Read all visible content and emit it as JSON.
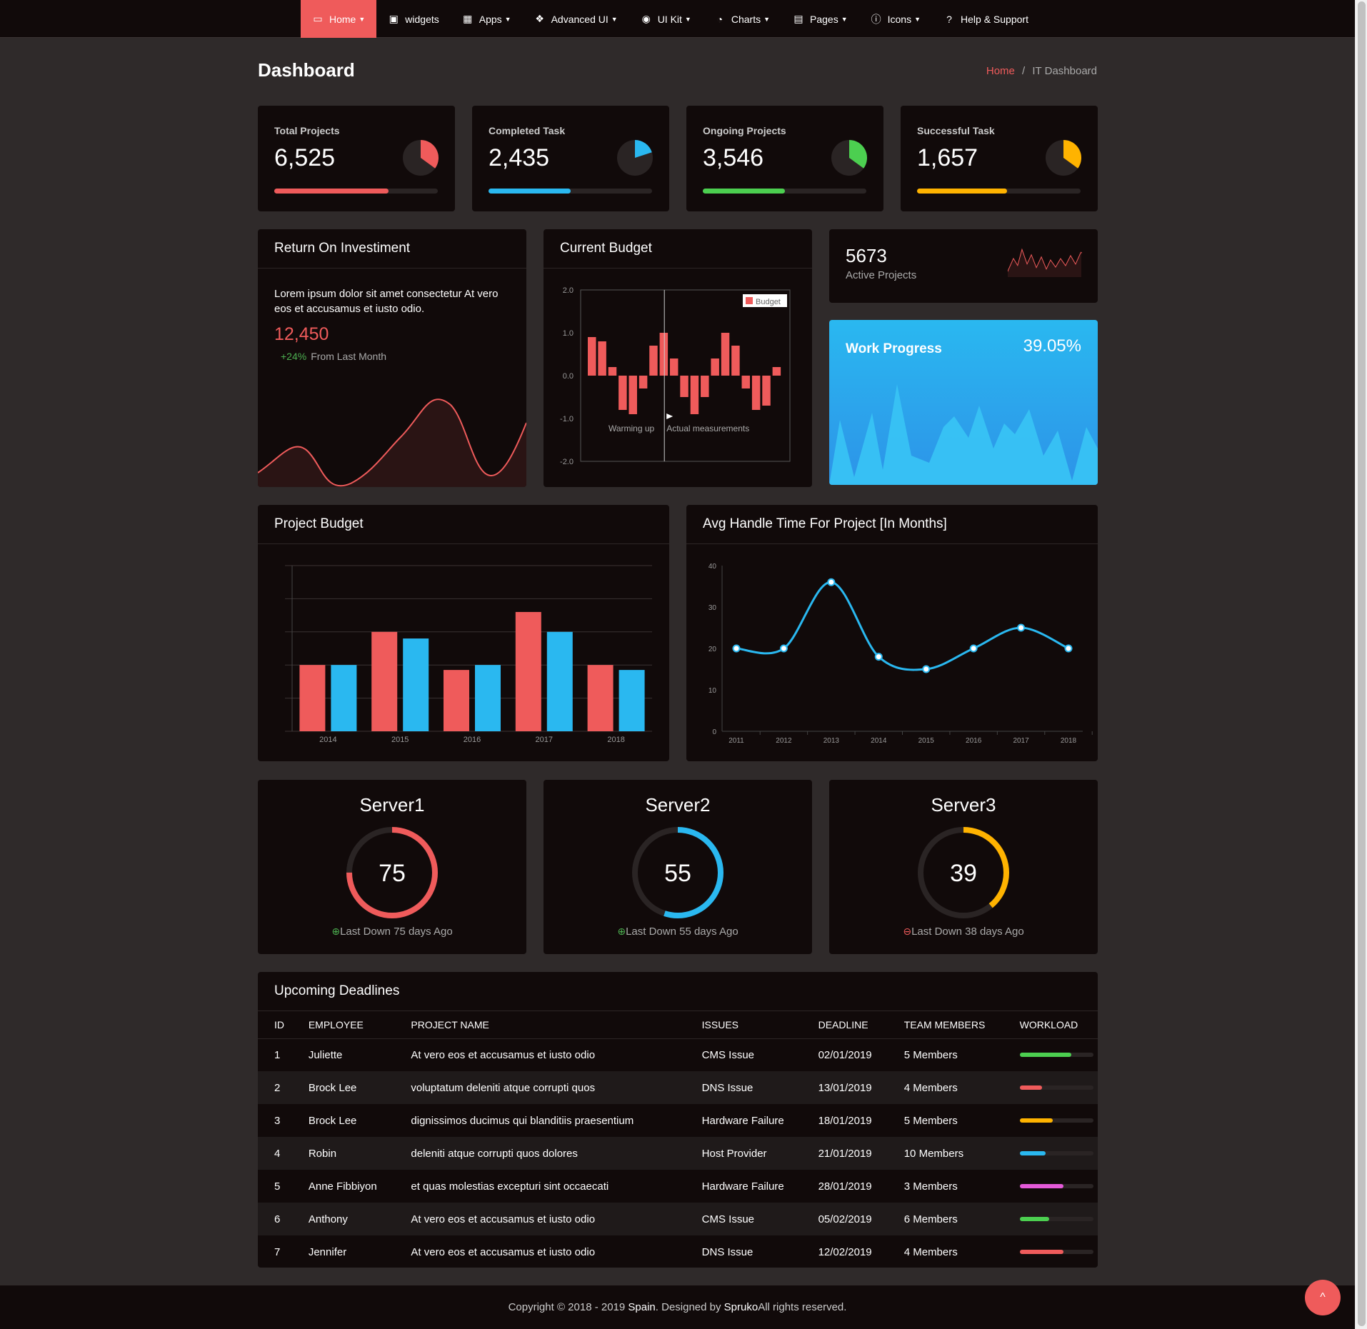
{
  "nav": {
    "items": [
      {
        "label": "Home",
        "icon": "monitor-icon",
        "chevron": true
      },
      {
        "label": "widgets",
        "icon": "window-icon",
        "chevron": false
      },
      {
        "label": "Apps",
        "icon": "grid-icon",
        "chevron": true
      },
      {
        "label": "Advanced UI",
        "icon": "cubes-icon",
        "chevron": true
      },
      {
        "label": "UI Kit",
        "icon": "compass-icon",
        "chevron": true
      },
      {
        "label": "Charts",
        "icon": "pie-chart-icon",
        "chevron": true
      },
      {
        "label": "Pages",
        "icon": "list-alt-icon",
        "chevron": true
      },
      {
        "label": "Icons",
        "icon": "info-circle-icon",
        "chevron": true
      },
      {
        "label": "Help & Support",
        "icon": "question-circle-icon",
        "chevron": false
      }
    ],
    "active_color": "#ef5b5b"
  },
  "page": {
    "title": "Dashboard"
  },
  "breadcrumb": {
    "home": "Home",
    "separator": "/",
    "current": "IT Dashboard"
  },
  "stats": [
    {
      "label": "Total Projects",
      "value": "6,525",
      "progress": 0.7,
      "pie_fraction": 0.35,
      "color": "#ef5b5b"
    },
    {
      "label": "Completed Task",
      "value": "2,435",
      "progress": 0.5,
      "pie_fraction": 0.2,
      "color": "#2ab8f0"
    },
    {
      "label": "Ongoing Projects",
      "value": "3,546",
      "progress": 0.5,
      "pie_fraction": 0.35,
      "color": "#4ccf50"
    },
    {
      "label": "Successful Task",
      "value": "1,657",
      "progress": 0.55,
      "pie_fraction": 0.35,
      "color": "#ffb300"
    }
  ],
  "roi": {
    "title": "Return On Investiment",
    "text": "Lorem ipsum dolor sit amet consectetur At vero eos et accusamus et iusto odio.",
    "value": "12,450",
    "change": "+24%",
    "change_label": "From Last Month"
  },
  "budget_card": {
    "title": "Current Budget",
    "chart_data": {
      "type": "bar",
      "legend": "Budget",
      "yticks": [
        "2.0",
        "1.0",
        "0.0",
        "-1.0",
        "-2.0"
      ],
      "ylim": [
        -2,
        2
      ],
      "annotations": [
        "Warming up",
        "Actual measurements"
      ],
      "values": [
        0.9,
        0.8,
        0.2,
        -0.8,
        -0.9,
        -0.3,
        0.7,
        1.0,
        0.4,
        -0.5,
        -0.9,
        -0.5,
        0.4,
        1.0,
        0.7,
        -0.3,
        -0.8,
        -0.7,
        0.2
      ]
    }
  },
  "active_projects": {
    "value": "5673",
    "label": "Active Projects"
  },
  "work_progress": {
    "title": "Work Progress",
    "value": "39.05%"
  },
  "project_budget": {
    "title": "Project Budget",
    "chart_data": {
      "type": "bar",
      "categories": [
        "2014",
        "2015",
        "2016",
        "2017",
        "2018"
      ],
      "series": [
        {
          "values": [
            40,
            60,
            37,
            72,
            40
          ],
          "color": "#ef5b5b"
        },
        {
          "values": [
            40,
            56,
            40,
            60,
            37
          ],
          "color": "#2ab8f0"
        }
      ],
      "ylim": [
        0,
        100
      ]
    }
  },
  "handle_time": {
    "title": "Avg Handle Time For Project [In Months]",
    "chart_data": {
      "type": "line",
      "x": [
        "2011",
        "2012",
        "2013",
        "2014",
        "2015",
        "2016",
        "2017",
        "2018"
      ],
      "y": [
        20,
        20,
        36,
        18,
        15,
        20,
        25,
        20
      ],
      "yticks": [
        "40",
        "30",
        "20",
        "10",
        "0"
      ],
      "ylim": [
        0,
        40
      ],
      "color": "#2ab8f0"
    }
  },
  "servers": [
    {
      "name": "Server1",
      "value": "75",
      "percent": 75,
      "color": "#ef5b5b",
      "note": "Last Down 75 days Ago",
      "status": "up",
      "status_color": "#4caf50"
    },
    {
      "name": "Server2",
      "value": "55",
      "percent": 55,
      "color": "#2ab8f0",
      "note": "Last Down 55 days Ago",
      "status": "up",
      "status_color": "#4caf50"
    },
    {
      "name": "Server3",
      "value": "39",
      "percent": 39,
      "color": "#ffb300",
      "note": "Last Down 38 days Ago",
      "status": "down",
      "status_color": "#ef5b5b"
    }
  ],
  "deadlines": {
    "title": "Upcoming Deadlines",
    "columns": [
      "ID",
      "EMPLOYEE",
      "PROJECT NAME",
      "ISSUES",
      "DEADLINE",
      "TEAM MEMBERS",
      "WORKLOAD"
    ],
    "rows": [
      {
        "id": "1",
        "employee": "Juliette",
        "project": "At vero eos et accusamus et iusto odio",
        "issue": "CMS Issue",
        "deadline": "02/01/2019",
        "team": "5 Members",
        "workload": 0.7,
        "color": "#4ccf50"
      },
      {
        "id": "2",
        "employee": "Brock Lee",
        "project": "voluptatum deleniti atque corrupti quos",
        "issue": "DNS Issue",
        "deadline": "13/01/2019",
        "team": "4 Members",
        "workload": 0.3,
        "color": "#ef5b5b"
      },
      {
        "id": "3",
        "employee": "Brock Lee",
        "project": "dignissimos ducimus qui blanditiis praesentium",
        "issue": "Hardware Failure",
        "deadline": "18/01/2019",
        "team": "5 Members",
        "workload": 0.45,
        "color": "#ffb300"
      },
      {
        "id": "4",
        "employee": "Robin",
        "project": "deleniti atque corrupti quos dolores",
        "issue": "Host Provider",
        "deadline": "21/01/2019",
        "team": "10 Members",
        "workload": 0.35,
        "color": "#2ab8f0"
      },
      {
        "id": "5",
        "employee": "Anne Fibbiyon",
        "project": "et quas molestias excepturi sint occaecati",
        "issue": "Hardware Failure",
        "deadline": "28/01/2019",
        "team": "3 Members",
        "workload": 0.6,
        "color": "#e45ad9"
      },
      {
        "id": "6",
        "employee": "Anthony",
        "project": "At vero eos et accusamus et iusto odio",
        "issue": "CMS Issue",
        "deadline": "05/02/2019",
        "team": "6 Members",
        "workload": 0.4,
        "color": "#4ccf50"
      },
      {
        "id": "7",
        "employee": "Jennifer",
        "project": "At vero eos et accusamus et iusto odio",
        "issue": "DNS Issue",
        "deadline": "12/02/2019",
        "team": "4 Members",
        "workload": 0.6,
        "color": "#ef5b5b"
      }
    ]
  },
  "footer": {
    "prefix": "Copyright © 2018 - 2019 ",
    "brand": "Spain",
    "middle": ". Designed by ",
    "designer": "Spruko",
    "suffix": "All rights reserved."
  },
  "back_to_top": "^"
}
